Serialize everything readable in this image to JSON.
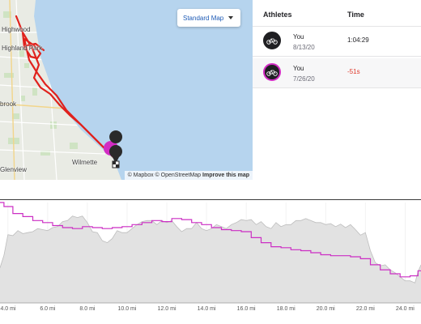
{
  "map": {
    "style_selector": "Standard Map",
    "labels": {
      "highwood": "Highwood",
      "highland_park": "Highland Park",
      "brook": "brook",
      "wilmette": "Wilmette",
      "glenview": "Glenview"
    },
    "attribution": {
      "mapbox": "© Mapbox",
      "osm": "© OpenStreetMap",
      "improve": "Improve this map"
    },
    "colors": {
      "water": "#b6d4ee",
      "land": "#e9ebe4",
      "route": "#e0211c",
      "marker_pink": "#d22cc4",
      "marker_dark": "#2a2a2a"
    }
  },
  "athletes_panel": {
    "header_athletes": "Athletes",
    "header_time": "Time",
    "rows": [
      {
        "name": "You",
        "date": "8/13/20",
        "time": "1:04:29",
        "avatar_ring": "dark"
      },
      {
        "name": "You",
        "date": "7/26/20",
        "time": "-51s",
        "avatar_ring": "pink"
      }
    ]
  },
  "chart": {
    "x_ticks": [
      "4.0 mi",
      "6.0 mi",
      "8.0 mi",
      "10.0 mi",
      "12.0 mi",
      "14.0 mi",
      "16.0 mi",
      "18.0 mi",
      "20.0 mi",
      "22.0 mi",
      "24.0 mi"
    ],
    "colors": {
      "elevation_fill": "#e2e2e2",
      "elevation_line": "#bdbdbd",
      "comparison_line": "#cc2ec4"
    }
  },
  "chart_data": {
    "type": "area",
    "xlabel": "",
    "ylabel": "",
    "x_unit": "mi",
    "xlim": [
      3.6,
      24.8
    ],
    "grid": true,
    "series": [
      {
        "x": [
          3.6,
          4.0,
          4.5,
          5.0,
          5.5,
          6.0,
          6.5,
          7.0,
          7.5,
          8.0,
          8.5,
          9.0,
          9.5,
          10.0,
          10.5,
          11.0,
          11.5,
          12.0,
          12.5,
          13.0,
          13.5,
          14.0,
          14.5,
          15.0,
          15.5,
          16.0,
          16.5,
          17.0,
          17.5,
          18.0,
          18.5,
          19.0,
          19.5,
          20.0,
          20.5,
          21.0,
          21.5,
          22.0,
          22.5,
          23.0,
          23.5,
          24.0,
          24.5,
          24.8
        ],
        "values": [
          35,
          68,
          72,
          70,
          74,
          72,
          76,
          82,
          85,
          80,
          70,
          60,
          72,
          70,
          78,
          82,
          78,
          80,
          76,
          74,
          80,
          72,
          78,
          74,
          80,
          82,
          78,
          76,
          80,
          78,
          82,
          84,
          80,
          78,
          76,
          75,
          73,
          70,
          40,
          38,
          30,
          22,
          20,
          38
        ]
      },
      {
        "x": [
          3.6,
          4.0,
          4.5,
          5.0,
          5.5,
          6.0,
          6.5,
          7.0,
          7.5,
          8.0,
          8.5,
          9.0,
          9.5,
          10.0,
          10.5,
          11.0,
          11.5,
          12.0,
          12.5,
          13.0,
          13.5,
          14.0,
          14.5,
          15.0,
          15.5,
          16.0,
          16.5,
          17.0,
          17.5,
          18.0,
          18.5,
          19.0,
          19.5,
          20.0,
          20.5,
          21.0,
          21.5,
          22.0,
          22.5,
          23.0,
          23.5,
          24.0,
          24.5,
          24.8
        ],
        "values": [
          100,
          96,
          89,
          86,
          82,
          80,
          77,
          75,
          74,
          76,
          75,
          74,
          75,
          76,
          78,
          80,
          82,
          81,
          84,
          83,
          80,
          78,
          75,
          73,
          72,
          71,
          65,
          60,
          56,
          55,
          53,
          52,
          50,
          48,
          47,
          47,
          46,
          44,
          38,
          33,
          29,
          26,
          27,
          32
        ]
      }
    ]
  }
}
